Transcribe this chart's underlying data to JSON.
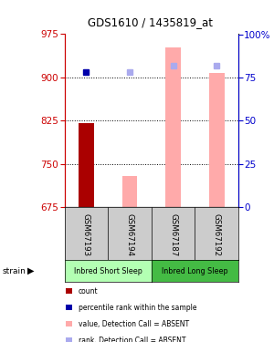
{
  "title": "GDS1610 / 1435819_at",
  "samples": [
    "GSM67193",
    "GSM67194",
    "GSM67187",
    "GSM67192"
  ],
  "groups": [
    {
      "name": "Inbred Short Sleep",
      "indices": [
        0,
        1
      ],
      "color": "#b3ffb3"
    },
    {
      "name": "Inbred Long Sleep",
      "indices": [
        2,
        3
      ],
      "color": "#44bb44"
    }
  ],
  "ylim_left": [
    675,
    975
  ],
  "ylim_right": [
    0,
    100
  ],
  "yticks_left": [
    675,
    750,
    825,
    900,
    975
  ],
  "yticks_right": [
    0,
    25,
    50,
    75,
    100
  ],
  "ytick_labels_right": [
    "0",
    "25",
    "50",
    "75",
    "100%"
  ],
  "left_axis_color": "#cc0000",
  "right_axis_color": "#0000cc",
  "bar_color_absent": "#ffaaaa",
  "bar_color_present": "#aa0000",
  "rank_color_absent": "#aaaaee",
  "rank_color_present": "#0000aa",
  "bars": [
    {
      "value": 820,
      "rank": 78,
      "value_absent": false,
      "rank_absent": false
    },
    {
      "value": 728,
      "rank": 78,
      "value_absent": true,
      "rank_absent": true
    },
    {
      "value": 952,
      "rank": 82,
      "value_absent": true,
      "rank_absent": true
    },
    {
      "value": 908,
      "rank": 82,
      "value_absent": true,
      "rank_absent": true
    }
  ],
  "dotted_line_values": [
    900,
    825,
    750
  ],
  "baseline": 675,
  "legend_items": [
    {
      "label": "count",
      "color": "#aa0000"
    },
    {
      "label": "percentile rank within the sample",
      "color": "#0000aa"
    },
    {
      "label": "value, Detection Call = ABSENT",
      "color": "#ffaaaa"
    },
    {
      "label": "rank, Detection Call = ABSENT",
      "color": "#aaaaee"
    }
  ],
  "sample_box_color": "#cccccc",
  "bar_width": 0.35
}
